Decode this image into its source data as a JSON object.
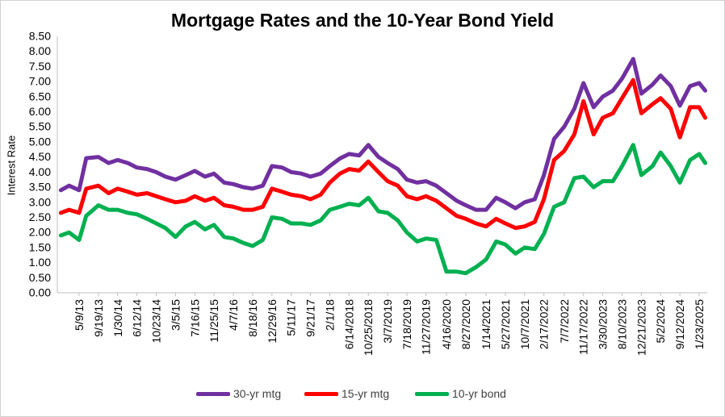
{
  "chart_data": {
    "type": "line",
    "title": "Mortgage Rates and the 10-Year Bond Yield",
    "ylabel": "Interest Rate",
    "xlabel": "",
    "ylim": [
      0,
      8.5
    ],
    "ytick_labels": [
      "0.00",
      "0.50",
      "1.00",
      "1.50",
      "2.00",
      "2.50",
      "3.00",
      "3.50",
      "4.00",
      "4.50",
      "5.00",
      "5.50",
      "6.00",
      "6.50",
      "7.00",
      "7.50",
      "8.00",
      "8.50"
    ],
    "xtick_labels": [
      "5/9/13",
      "9/19/13",
      "1/30/14",
      "6/12/14",
      "10/23/14",
      "3/5/15",
      "7/16/15",
      "11/25/15",
      "4/7/16",
      "8/18/16",
      "12/29/16",
      "5/11/17",
      "9/21/17",
      "2/1/18",
      "6/14/2018",
      "10/25/2018",
      "3/7/2019",
      "7/18/2019",
      "11/27/2019",
      "4/16/2020",
      "8/27/2020",
      "1/14/2021",
      "5/27/2021",
      "10/7/2021",
      "2/17/2022",
      "7/7/2022",
      "11/17/2022",
      "3/30/2023",
      "8/10/2023",
      "12/21/2023",
      "5/2/2024",
      "9/12/2024",
      "1/23/2025"
    ],
    "grid": false,
    "legend_position": "bottom",
    "series": [
      {
        "name": "30-yr mtg",
        "color": "#7030a0",
        "x": [
          "1/3/13",
          "3/1/13",
          "5/9/13",
          "6/27/13",
          "9/19/13",
          "11/28/13",
          "1/30/14",
          "4/10/14",
          "6/12/14",
          "8/21/14",
          "10/23/14",
          "12/25/14",
          "3/5/15",
          "5/14/15",
          "7/16/15",
          "9/24/15",
          "11/25/15",
          "2/4/16",
          "4/7/16",
          "6/16/16",
          "8/18/16",
          "10/27/16",
          "12/29/16",
          "3/9/17",
          "5/11/17",
          "7/20/17",
          "9/21/17",
          "11/30/17",
          "2/1/18",
          "4/12/18",
          "6/14/18",
          "8/23/18",
          "10/25/18",
          "1/3/19",
          "3/7/19",
          "5/16/19",
          "7/18/19",
          "9/26/19",
          "11/27/19",
          "2/6/20",
          "4/16/20",
          "6/25/20",
          "8/27/20",
          "11/5/20",
          "1/14/21",
          "3/25/21",
          "5/27/21",
          "8/5/21",
          "10/7/21",
          "12/16/21",
          "2/17/22",
          "4/28/22",
          "7/7/22",
          "9/15/22",
          "11/17/22",
          "1/26/23",
          "3/30/23",
          "6/8/23",
          "8/10/23",
          "10/26/23",
          "12/21/23",
          "3/7/24",
          "5/2/24",
          "7/11/24",
          "9/12/24",
          "11/21/24",
          "1/23/25",
          "3/6/25"
        ],
        "values": [
          3.4,
          3.55,
          3.4,
          4.46,
          4.5,
          4.3,
          4.4,
          4.3,
          4.15,
          4.1,
          4.0,
          3.85,
          3.75,
          3.9,
          4.04,
          3.85,
          3.95,
          3.65,
          3.6,
          3.5,
          3.45,
          3.55,
          4.2,
          4.15,
          4.0,
          3.95,
          3.85,
          3.95,
          4.2,
          4.45,
          4.6,
          4.55,
          4.9,
          4.5,
          4.3,
          4.1,
          3.75,
          3.65,
          3.7,
          3.55,
          3.3,
          3.05,
          2.9,
          2.75,
          2.75,
          3.15,
          3.0,
          2.8,
          3.0,
          3.1,
          3.9,
          5.1,
          5.5,
          6.1,
          6.95,
          6.15,
          6.5,
          6.7,
          7.1,
          7.75,
          6.6,
          6.9,
          7.2,
          6.85,
          6.2,
          6.85,
          6.95,
          6.7
        ]
      },
      {
        "name": "15-yr mtg",
        "color": "#ff0000",
        "x": [
          "1/3/13",
          "3/1/13",
          "5/9/13",
          "6/27/13",
          "9/19/13",
          "11/28/13",
          "1/30/14",
          "4/10/14",
          "6/12/14",
          "8/21/14",
          "10/23/14",
          "12/25/14",
          "3/5/15",
          "5/14/15",
          "7/16/15",
          "9/24/15",
          "11/25/15",
          "2/4/16",
          "4/7/16",
          "6/16/16",
          "8/18/16",
          "10/27/16",
          "12/29/16",
          "3/9/17",
          "5/11/17",
          "7/20/17",
          "9/21/17",
          "11/30/17",
          "2/1/18",
          "4/12/18",
          "6/14/18",
          "8/23/18",
          "10/25/18",
          "1/3/19",
          "3/7/19",
          "5/16/19",
          "7/18/19",
          "9/26/19",
          "11/27/19",
          "2/6/20",
          "4/16/20",
          "6/25/20",
          "8/27/20",
          "11/5/20",
          "1/14/21",
          "3/25/21",
          "5/27/21",
          "8/5/21",
          "10/7/21",
          "12/16/21",
          "2/17/22",
          "4/28/22",
          "7/7/22",
          "9/15/22",
          "11/17/22",
          "1/26/23",
          "3/30/23",
          "6/8/23",
          "8/10/23",
          "10/26/23",
          "12/21/23",
          "3/7/24",
          "5/2/24",
          "7/11/24",
          "9/12/24",
          "11/21/24",
          "1/23/25",
          "3/6/25"
        ],
        "values": [
          2.65,
          2.75,
          2.65,
          3.45,
          3.55,
          3.3,
          3.45,
          3.35,
          3.25,
          3.3,
          3.2,
          3.1,
          3.0,
          3.05,
          3.2,
          3.05,
          3.15,
          2.9,
          2.85,
          2.75,
          2.75,
          2.85,
          3.45,
          3.35,
          3.25,
          3.2,
          3.1,
          3.25,
          3.65,
          3.95,
          4.1,
          4.05,
          4.35,
          4.0,
          3.7,
          3.55,
          3.2,
          3.1,
          3.2,
          3.05,
          2.8,
          2.55,
          2.45,
          2.3,
          2.2,
          2.45,
          2.3,
          2.15,
          2.2,
          2.35,
          3.1,
          4.4,
          4.7,
          5.25,
          6.35,
          5.25,
          5.8,
          5.95,
          6.45,
          7.05,
          5.95,
          6.25,
          6.45,
          6.1,
          5.15,
          6.15,
          6.15,
          5.8
        ]
      },
      {
        "name": "10-yr bond",
        "color": "#00b050",
        "x": [
          "1/3/13",
          "3/1/13",
          "5/9/13",
          "6/27/13",
          "9/19/13",
          "11/28/13",
          "1/30/14",
          "4/10/14",
          "6/12/14",
          "8/21/14",
          "10/23/14",
          "12/25/14",
          "3/5/15",
          "5/14/15",
          "7/16/15",
          "9/24/15",
          "11/25/15",
          "2/4/16",
          "4/7/16",
          "6/16/16",
          "8/18/16",
          "10/27/16",
          "12/29/16",
          "3/9/17",
          "5/11/17",
          "7/20/17",
          "9/21/17",
          "11/30/17",
          "2/1/18",
          "4/12/18",
          "6/14/18",
          "8/23/18",
          "10/25/18",
          "1/3/19",
          "3/7/19",
          "5/16/19",
          "7/18/19",
          "9/26/19",
          "11/27/19",
          "2/6/20",
          "4/16/20",
          "6/25/20",
          "8/27/20",
          "11/5/20",
          "1/14/21",
          "3/25/21",
          "5/27/21",
          "8/5/21",
          "10/7/21",
          "12/16/21",
          "2/17/22",
          "4/28/22",
          "7/7/22",
          "9/15/22",
          "11/17/22",
          "1/26/23",
          "3/30/23",
          "6/8/23",
          "8/10/23",
          "10/26/23",
          "12/21/23",
          "3/7/24",
          "5/2/24",
          "7/11/24",
          "9/12/24",
          "11/21/24",
          "1/23/25",
          "3/6/25"
        ],
        "values": [
          1.9,
          2.0,
          1.75,
          2.55,
          2.9,
          2.75,
          2.75,
          2.65,
          2.6,
          2.45,
          2.3,
          2.15,
          1.85,
          2.2,
          2.35,
          2.1,
          2.25,
          1.85,
          1.8,
          1.65,
          1.55,
          1.75,
          2.5,
          2.45,
          2.3,
          2.3,
          2.25,
          2.4,
          2.75,
          2.85,
          2.95,
          2.9,
          3.15,
          2.7,
          2.65,
          2.4,
          2.0,
          1.7,
          1.8,
          1.75,
          0.7,
          0.7,
          0.65,
          0.85,
          1.1,
          1.7,
          1.6,
          1.3,
          1.5,
          1.45,
          1.95,
          2.85,
          3.0,
          3.8,
          3.85,
          3.5,
          3.7,
          3.7,
          4.2,
          4.9,
          3.9,
          4.2,
          4.65,
          4.2,
          3.65,
          4.4,
          4.6,
          4.3
        ]
      }
    ]
  }
}
